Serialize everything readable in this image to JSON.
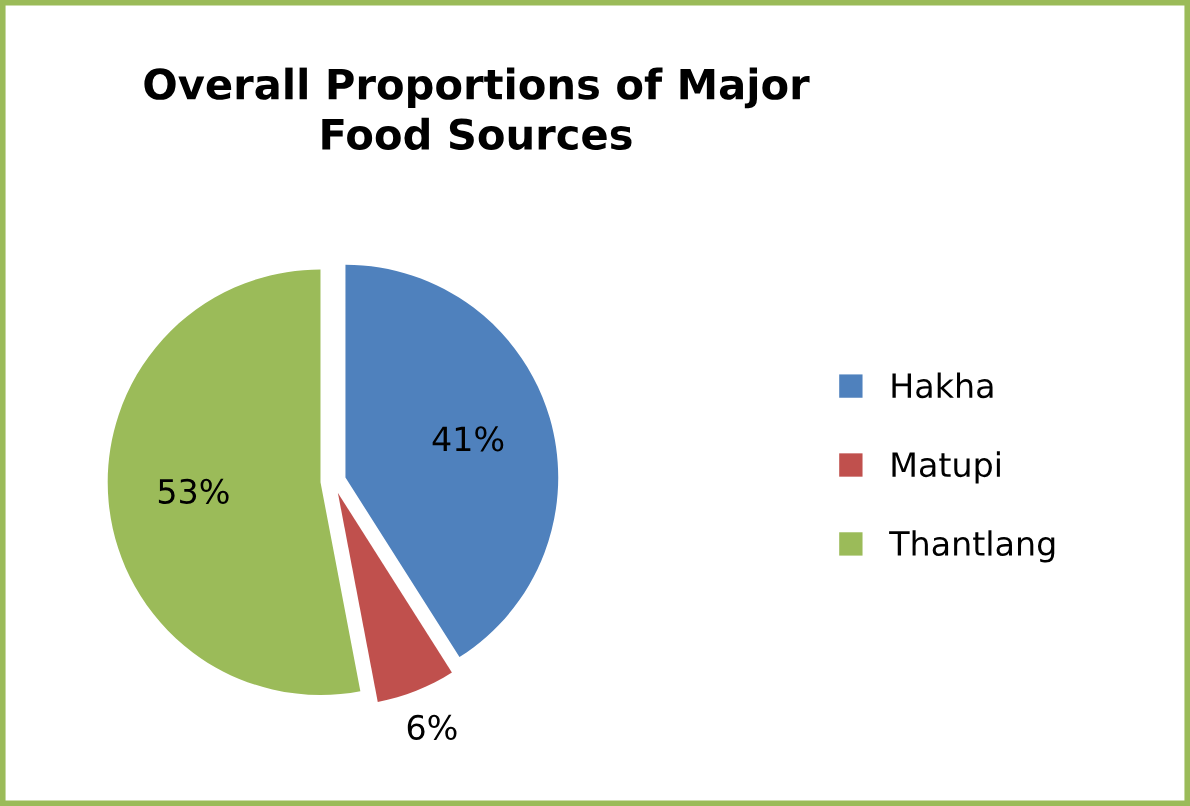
{
  "chart_data": {
    "type": "pie",
    "title": "Overall Proportions of Major\nFood Sources",
    "categories": [
      "Hakha",
      "Matupi",
      "Thantlang"
    ],
    "values": [
      41,
      6,
      53
    ],
    "colors": [
      "#4f81bd",
      "#c0504d",
      "#9bbb59"
    ],
    "value_labels": [
      "41%",
      "6%",
      "53%"
    ],
    "legend": "right"
  }
}
